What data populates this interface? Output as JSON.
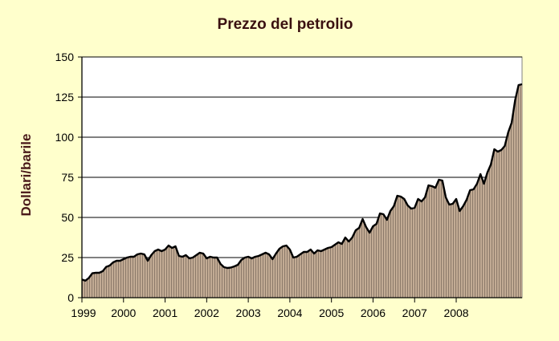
{
  "chart_data": {
    "type": "area",
    "title": "Prezzo del petrolio",
    "xlabel": "",
    "ylabel": "Dollari/barile",
    "ylim": [
      0,
      150
    ],
    "yticks": [
      0,
      25,
      50,
      75,
      100,
      125,
      150
    ],
    "xticks": [
      "1999",
      "2000",
      "2001",
      "2002",
      "2003",
      "2004",
      "2005",
      "2006",
      "2007",
      "2008"
    ],
    "x_start": "1999-01",
    "frequency": "monthly",
    "grid": true,
    "legend": "none",
    "colors": {
      "fill": "#c2ab94",
      "stripe": "#8c7a6a",
      "line": "#000000",
      "background": "#ffffcc",
      "plot_background": "#ffffff"
    },
    "series": [
      {
        "values": [
          11.3,
          10.6,
          12.3,
          15.2,
          15.5,
          15.5,
          16.5,
          19.2,
          20.0,
          22.0,
          23.0,
          23.0,
          24.0,
          25.0,
          25.5,
          25.5,
          27.0,
          27.5,
          27.0,
          23.0,
          26.5,
          29.0,
          30.0,
          29.0,
          30.0,
          32.5,
          31.0,
          32.0,
          26.0,
          25.5,
          26.5,
          24.5,
          25.0,
          26.5,
          28.0,
          27.5,
          24.5,
          25.5,
          25.0,
          25.0,
          21.0,
          19.0,
          18.5,
          18.8,
          19.5,
          20.5,
          23.5,
          25.0,
          25.5,
          24.5,
          25.5,
          26.0,
          27.0,
          28.0,
          27.0,
          24.0,
          27.5,
          30.5,
          32.0,
          32.5,
          30.0,
          25.0,
          25.5,
          27.0,
          28.5,
          28.5,
          30.0,
          27.5,
          29.5,
          29.0,
          30.0,
          31.0,
          31.5,
          33.0,
          34.5,
          33.5,
          37.5,
          35.0,
          37.5,
          42.0,
          43.5,
          49.0,
          44.0,
          40.5,
          44.5,
          46.0,
          52.5,
          52.0,
          48.5,
          54.0,
          57.0,
          63.5,
          63.0,
          61.5,
          57.5,
          55.5,
          56.0,
          61.5,
          60.0,
          62.5,
          70.0,
          69.5,
          68.5,
          73.5,
          73.0,
          62.5,
          58.0,
          58.5,
          61.5,
          54.0,
          57.0,
          61.0,
          67.0,
          67.5,
          71.0,
          77.0,
          71.0,
          78.0,
          83.0,
          92.5,
          91.0,
          92.0,
          94.5,
          103.0,
          109.0,
          123.0,
          132.5,
          133.0
        ]
      }
    ]
  }
}
